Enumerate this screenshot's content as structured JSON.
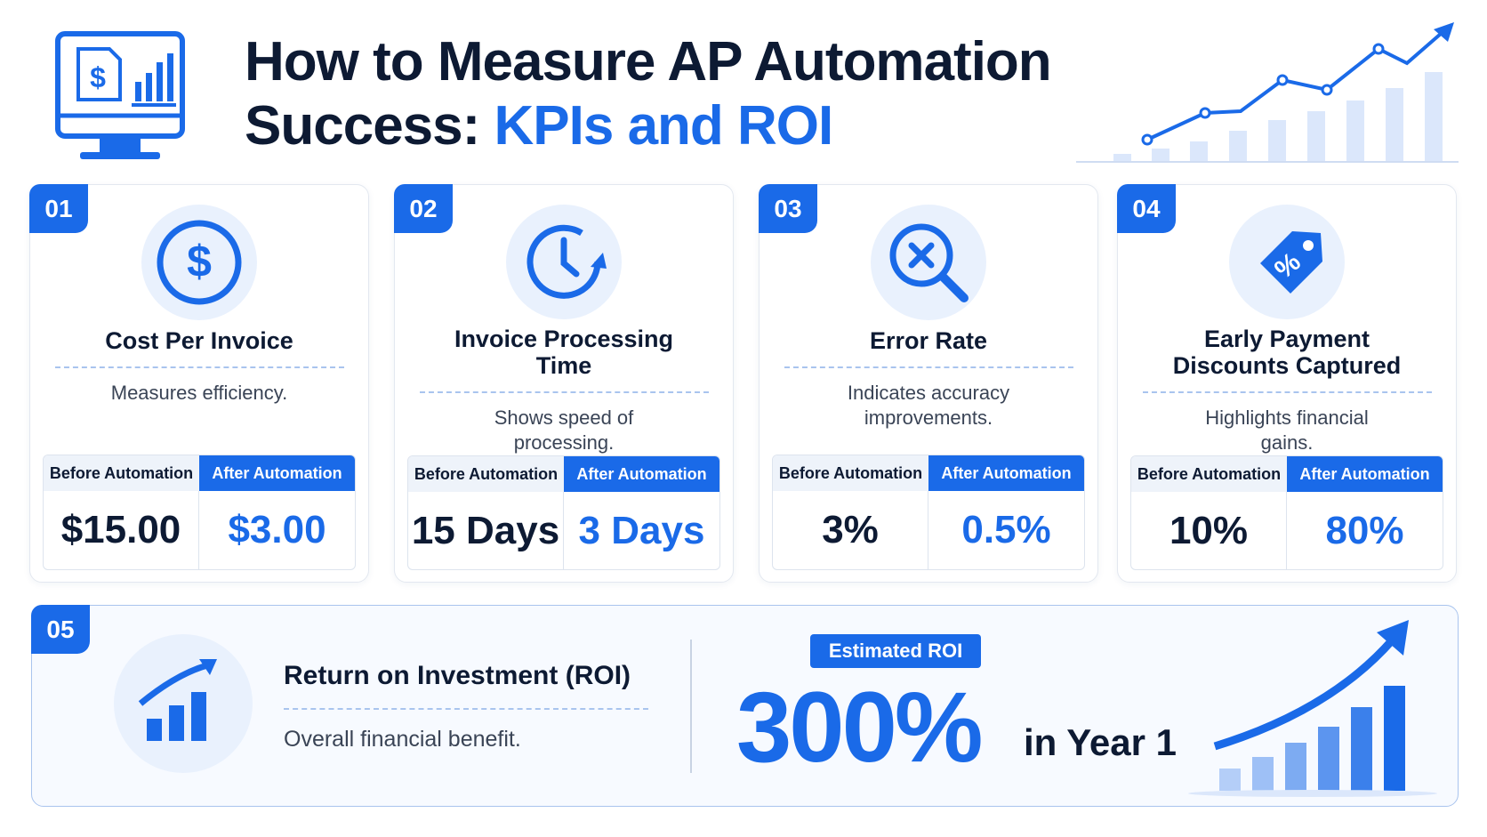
{
  "header": {
    "title_line1": "How to Measure AP Automation",
    "title_line2_plain": "Success:",
    "title_line2_accent": "KPIs and ROI"
  },
  "cards": [
    {
      "number": "01",
      "title": "Cost Per Invoice",
      "description": "Measures efficiency.",
      "before_label": "Before Automation",
      "after_label": "After Automation",
      "before_value": "$15.00",
      "after_value": "$3.00"
    },
    {
      "number": "02",
      "title": "Invoice Processing Time",
      "description": "Shows speed of processing.",
      "before_label": "Before Automation",
      "after_label": "After Automation",
      "before_value": "15 Days",
      "after_value": "3 Days"
    },
    {
      "number": "03",
      "title": "Error Rate",
      "description": "Indicates accuracy improvements.",
      "before_label": "Before Automation",
      "after_label": "After Automation",
      "before_value": "3%",
      "after_value": "0.5%"
    },
    {
      "number": "04",
      "title": "Early Payment Discounts Captured",
      "description": "Highlights financial gains.",
      "before_label": "Before Automation",
      "after_label": "After Automation",
      "before_value": "10%",
      "after_value": "80%"
    }
  ],
  "roi": {
    "number": "05",
    "title": "Return on Investment (ROI)",
    "description": "Overall financial benefit.",
    "badge": "Estimated ROI",
    "value": "300%",
    "suffix": "in Year 1"
  }
}
